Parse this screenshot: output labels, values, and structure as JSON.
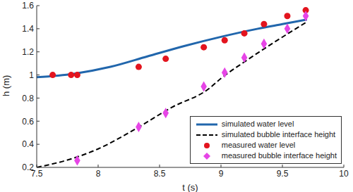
{
  "chart_data": {
    "type": "line",
    "x_label": "t (s)",
    "y_label": "h (m)",
    "xlim": [
      7.5,
      10
    ],
    "xticks": [
      7.5,
      8,
      8.5,
      9,
      9.5,
      10
    ],
    "ylim": [
      0.2,
      1.6
    ],
    "yticks": [
      0.2,
      0.4,
      0.6,
      0.8,
      1,
      1.2,
      1.4,
      1.6
    ],
    "grid": false,
    "legend": "lower right",
    "series": [
      {
        "name": "simulated water level",
        "type": "line",
        "color": "#2166ac",
        "line_style": "solid",
        "x": [
          7.5,
          7.8,
          8.1,
          8.4,
          8.7,
          9.0,
          9.3,
          9.5,
          9.7
        ],
        "values": [
          0.98,
          1.01,
          1.07,
          1.16,
          1.25,
          1.33,
          1.4,
          1.44,
          1.48
        ]
      },
      {
        "name": "simulated bubble interface height",
        "type": "line",
        "color": "#000000",
        "line_style": "dashed",
        "x": [
          7.5,
          7.8,
          8.0,
          8.3,
          8.6,
          8.9,
          9.0,
          9.2,
          9.4,
          9.7
        ],
        "values": [
          0.2,
          0.28,
          0.36,
          0.53,
          0.72,
          0.88,
          0.97,
          1.12,
          1.26,
          1.46
        ]
      },
      {
        "name": "measured water level",
        "type": "scatter",
        "color": "#e3141e",
        "marker": "circle",
        "x": [
          7.63,
          7.78,
          7.83,
          8.33,
          8.55,
          8.86,
          9.03,
          9.19,
          9.35,
          9.54,
          9.69
        ],
        "values": [
          1.0,
          1.0,
          1.0,
          1.07,
          1.14,
          1.24,
          1.3,
          1.36,
          1.44,
          1.51,
          1.56
        ]
      },
      {
        "name": "measured bubble interface height",
        "type": "scatter",
        "color": "#e645e6",
        "marker": "diamond",
        "x": [
          7.83,
          8.33,
          8.55,
          8.86,
          9.03,
          9.19,
          9.35,
          9.54,
          9.69
        ],
        "values": [
          0.26,
          0.55,
          0.67,
          0.9,
          1.02,
          1.15,
          1.27,
          1.4,
          1.51
        ]
      }
    ]
  }
}
